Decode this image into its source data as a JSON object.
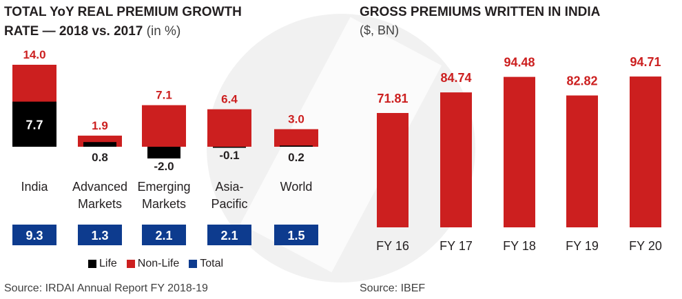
{
  "colors": {
    "life": "#000000",
    "non_life": "#cc1f1f",
    "total": "#0d3b8e",
    "value_label_red": "#cc1f1f",
    "text": "#231f20"
  },
  "left_panel": {
    "title_line1": "TOTAL YoY REAL PREMIUM GROWTH",
    "title_line2": "RATE — 2018 vs. 2017",
    "title_unit": "(in %)",
    "source": "Source: IRDAI Annual Report FY 2018-19",
    "legend": [
      {
        "label": "Life",
        "color": "#000000"
      },
      {
        "label": "Non-Life",
        "color": "#cc1f1f"
      },
      {
        "label": "Total",
        "color": "#0d3b8e"
      }
    ]
  },
  "right_panel": {
    "title": "GROSS PREMIUMS WRITTEN IN INDIA",
    "unit": "($, BN)",
    "source": "Source: IBEF"
  },
  "chart_data": [
    {
      "type": "bar",
      "title": "TOTAL YoY REAL PREMIUM GROWTH RATE — 2018 vs. 2017 (in %)",
      "categories": [
        [
          "India"
        ],
        [
          "Advanced",
          "Markets"
        ],
        [
          "Emerging",
          "Markets"
        ],
        [
          "Asia-",
          "Pacific"
        ],
        [
          "World"
        ]
      ],
      "series": [
        {
          "name": "Life",
          "values": [
            7.7,
            0.8,
            -2.0,
            -0.1,
            0.2
          ],
          "labels": [
            "7.7",
            "0.8",
            "-2.0",
            "-0.1",
            "0.2"
          ]
        },
        {
          "name": "Non-Life",
          "values": [
            14.0,
            1.9,
            7.1,
            6.4,
            3.0
          ],
          "labels": [
            "14.0",
            "1.9",
            "7.1",
            "6.4",
            "3.0"
          ]
        },
        {
          "name": "Total",
          "values": [
            9.3,
            1.3,
            2.1,
            2.1,
            1.5
          ],
          "labels": [
            "9.3",
            "1.3",
            "2.1",
            "2.1",
            "1.5"
          ]
        }
      ],
      "legend_position": "bottom",
      "grid": false
    },
    {
      "type": "bar",
      "title": "GROSS PREMIUMS WRITTEN IN INDIA",
      "subtitle": "($, BN)",
      "categories": [
        "FY 16",
        "FY 17",
        "FY 18",
        "FY 19",
        "FY 20"
      ],
      "values": [
        71.81,
        84.74,
        94.48,
        82.82,
        94.71
      ],
      "labels": [
        "71.81",
        "84.74",
        "94.48",
        "82.82",
        "94.71"
      ],
      "ylim": [
        0,
        100
      ],
      "grid": false
    }
  ]
}
